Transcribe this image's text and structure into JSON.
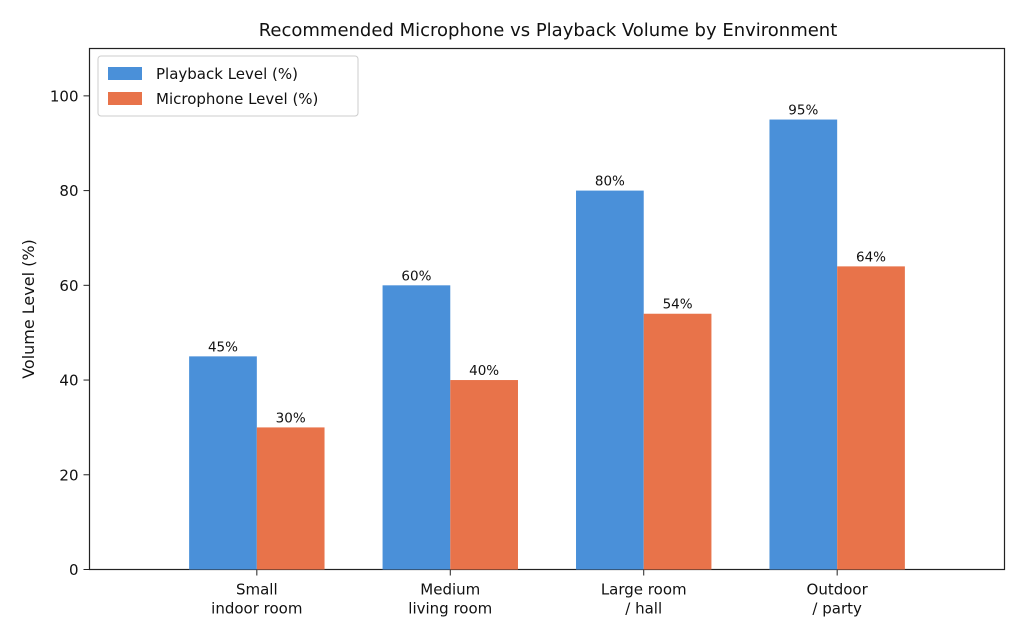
{
  "chart_data": {
    "type": "bar",
    "title": "Recommended Microphone vs Playback Volume by Environment",
    "xlabel": "",
    "ylabel": "Volume Level (%)",
    "ylim": [
      0,
      110
    ],
    "yticks": [
      "0",
      "20",
      "40",
      "60",
      "80",
      "100"
    ],
    "categories": [
      [
        "Small",
        "indoor room"
      ],
      [
        "Medium",
        "living room"
      ],
      [
        "Large room",
        "/ hall"
      ],
      [
        "Outdoor",
        "/ party"
      ]
    ],
    "series": [
      {
        "name": "Playback Level (%)",
        "color": "#4a90d9",
        "values": [
          45,
          60,
          80,
          95
        ],
        "labels": [
          "45%",
          "60%",
          "80%",
          "95%"
        ]
      },
      {
        "name": "Microphone Level (%)",
        "color": "#e8734a",
        "values": [
          30,
          40,
          54,
          64
        ],
        "labels": [
          "30%",
          "40%",
          "54%",
          "64%"
        ]
      }
    ],
    "grid": false,
    "legend_position": "top-left"
  }
}
